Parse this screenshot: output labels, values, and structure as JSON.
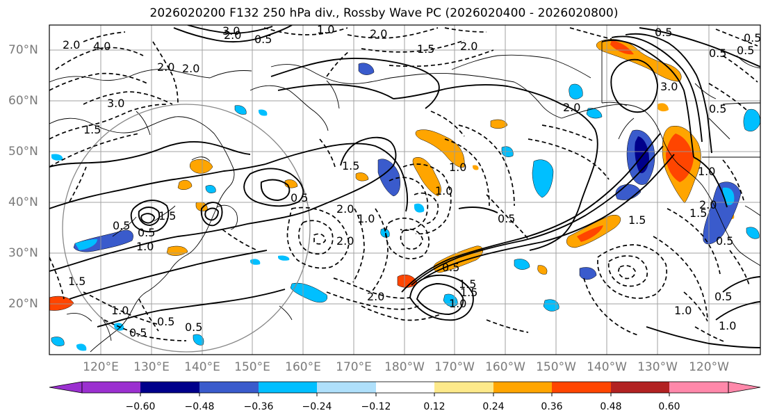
{
  "title": "2026020200 F132 250 hPa div., Rossby Wave PC (2026020400 - 2026020800)",
  "axes": {
    "lat_labels": [
      "70°N",
      "60°N",
      "50°N",
      "40°N",
      "30°N",
      "20°N"
    ],
    "lon_labels": [
      "120°E",
      "130°E",
      "140°E",
      "150°E",
      "160°E",
      "170°E",
      "180°W",
      "170°W",
      "160°W",
      "150°W",
      "140°W",
      "130°W",
      "120°W"
    ]
  },
  "colorbar": {
    "ticks": [
      "−0.60",
      "−0.48",
      "−0.36",
      "−0.24",
      "−0.12",
      "0.12",
      "0.24",
      "0.36",
      "0.48",
      "0.60"
    ],
    "colors": [
      "#9b30d0",
      "#00008b",
      "#3a5bcc",
      "#00bfff",
      "#afe0fb",
      "#ffffff",
      "#fde98a",
      "#ffa500",
      "#ff4500",
      "#b22222",
      "#ff88aa"
    ]
  },
  "contour_labels": [
    "3.0",
    "2.0",
    "0.5",
    "1.0",
    "2.0",
    "4.0",
    "2.0",
    "1.5",
    "2.0",
    "3.0",
    "1.5",
    "2.0",
    "0.5",
    "3.0",
    "2.0",
    "1.0",
    "1.5",
    "0.5",
    "2.0",
    "1.0",
    "0.5",
    "1.0",
    "1.5",
    "0.5",
    "2.0",
    "1.0",
    "0.5",
    "1.5",
    "0.5",
    "1.0",
    "2.0",
    "1.5",
    "1.0",
    "1.5",
    "2.0",
    "0.5",
    "0.5",
    "1.0",
    "0.5",
    "0.5",
    "0.5",
    "1.0",
    "0.5",
    "1.5",
    "1.0",
    "0.5",
    "1.5",
    "2.0",
    "0.5",
    "0.5"
  ]
}
